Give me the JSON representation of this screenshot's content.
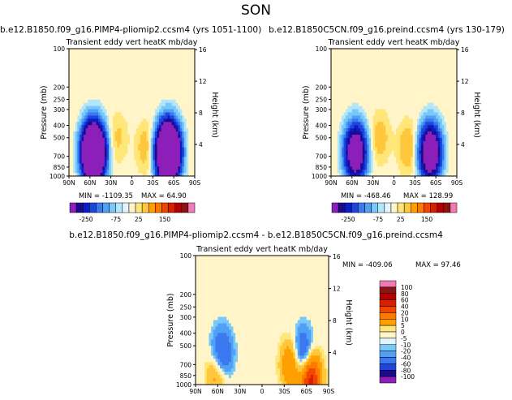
{
  "page_title": "SON",
  "colors": {
    "neg": [
      "#8c1eb9",
      "#1a0a8c",
      "#0a1ec8",
      "#1e46dc",
      "#3c78f0",
      "#50a0f5",
      "#78c8fa",
      "#b4e6fa",
      "#e1f5ff"
    ],
    "zero": "#fff5c8",
    "pos": [
      "#ffe678",
      "#ffc83c",
      "#ffa000",
      "#ff7800",
      "#f04600",
      "#dc1e00",
      "#b40000",
      "#8c1414",
      "#f07ab4"
    ]
  },
  "chart_data": [
    {
      "type": "heatmap",
      "id": "top-left",
      "title": "b.e12.B1850.f09_g16.PIMP4-pliomip2.ccsm4 (yrs 1051-1100)",
      "subtitle": "Transient eddy vert heatK mb/day",
      "xlabel": "",
      "ylabel": "Pressure (mb)",
      "ylabel_right": "Height (km)",
      "x_ticks": [
        "90N",
        "60N",
        "30N",
        "0",
        "30S",
        "60S",
        "90S"
      ],
      "y_ticks": [
        "100",
        "200",
        "250",
        "300",
        "400",
        "500",
        "700",
        "850",
        "1000"
      ],
      "height_ticks": [
        "16",
        "12",
        "8",
        "4"
      ],
      "min_label": "MIN = -1109.35",
      "max_label": "MAX = 64.90",
      "colorbar_labels": [
        "-250",
        "-75",
        "25",
        "150"
      ],
      "blobs": [
        {
          "lat": 55,
          "p": 650,
          "min": -1000
        },
        {
          "lat": -52,
          "p": 650,
          "min": -1109.35
        },
        {
          "lat": 20,
          "p": 500,
          "min": 30
        },
        {
          "lat": -20,
          "p": 600,
          "min": 40
        }
      ]
    },
    {
      "type": "heatmap",
      "id": "top-right",
      "title": "b.e12.B1850C5CN.f09_g16.preind.ccsm4 (yrs 130-179)",
      "subtitle": "Transient eddy vert heatK mb/day",
      "xlabel": "",
      "ylabel": "Pressure (mb)",
      "ylabel_right": "Height (km)",
      "x_ticks": [
        "90N",
        "60N",
        "30N",
        "0",
        "30S",
        "60S",
        "90S"
      ],
      "y_ticks": [
        "100",
        "200",
        "250",
        "300",
        "400",
        "500",
        "700",
        "850",
        "1000"
      ],
      "height_ticks": [
        "16",
        "12",
        "8",
        "4"
      ],
      "min_label": "MIN = -468.46",
      "max_label": "MAX = 128.99",
      "colorbar_labels": [
        "-250",
        "-75",
        "25",
        "150"
      ],
      "blobs": [
        {
          "lat": 55,
          "p": 650,
          "min": -450
        },
        {
          "lat": -52,
          "p": 650,
          "min": -468.46
        },
        {
          "lat": 20,
          "p": 500,
          "min": 40
        },
        {
          "lat": -20,
          "p": 600,
          "min": 50
        }
      ]
    },
    {
      "type": "heatmap",
      "id": "bottom-diff",
      "title": "b.e12.B1850.f09_g16.PIMP4-pliomip2.ccsm4 - b.e12.B1850C5CN.f09_g16.preind.ccsm4",
      "subtitle": "Transient eddy vert heatK mb/day",
      "xlabel": "",
      "ylabel": "Pressure (mb)",
      "ylabel_right": "Height (km)",
      "x_ticks": [
        "90N",
        "60N",
        "30N",
        "0",
        "30S",
        "60S",
        "90S"
      ],
      "y_ticks": [
        "100",
        "200",
        "250",
        "300",
        "400",
        "500",
        "700",
        "850",
        "1000"
      ],
      "height_ticks": [
        "16",
        "12",
        "8",
        "4"
      ],
      "min_label": "MIN = -409.06",
      "max_label": "MAX = 97.46",
      "colorbar_labels": [
        "100",
        "80",
        "60",
        "40",
        "20",
        "10",
        "5",
        "0",
        "-5",
        "-10",
        "-20",
        "-40",
        "-60",
        "-80",
        "-100"
      ],
      "blobs": [
        {
          "lat": 55,
          "p": 600,
          "min": -60
        },
        {
          "lat": -55,
          "p": 600,
          "min": -60
        },
        {
          "lat": 60,
          "p": 780,
          "min": 45
        },
        {
          "lat": -40,
          "p": 700,
          "min": 50
        },
        {
          "lat": -65,
          "p": 880,
          "min": 97.46
        }
      ]
    }
  ]
}
